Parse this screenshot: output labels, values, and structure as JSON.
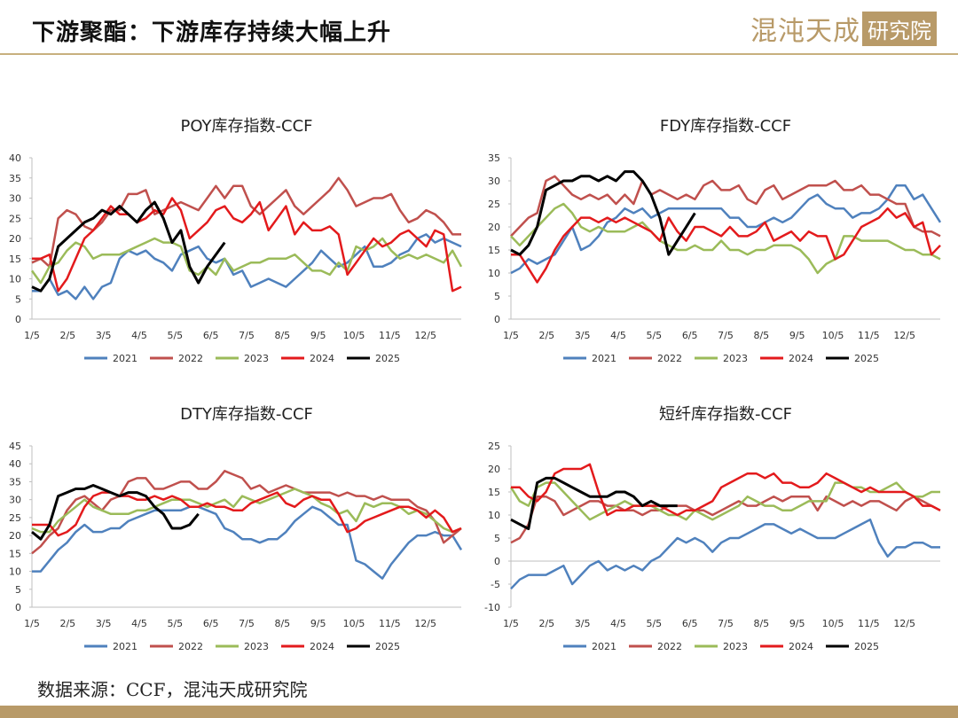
{
  "page": {
    "title": "下游聚酯：下游库存持续大幅上升",
    "logo_text": "混沌天成",
    "logo_box": "研究院",
    "source": "数据来源：CCF，混沌天成研究院"
  },
  "colors": {
    "2021": "#4f81bd",
    "2022": "#c0504d",
    "2023": "#9bbb59",
    "2024": "#e31a1c",
    "2025": "#000000",
    "accent": "#b89a68"
  },
  "chart_data": [
    {
      "type": "line",
      "title": "POY库存指数-CCF",
      "x_ticks": [
        "1/5",
        "2/5",
        "3/5",
        "4/5",
        "5/5",
        "6/5",
        "7/5",
        "8/5",
        "9/5",
        "10/5",
        "11/5",
        "12/5"
      ],
      "ylim": [
        0,
        40
      ],
      "y_ticks": [
        0,
        5,
        10,
        15,
        20,
        25,
        30,
        35,
        40
      ],
      "series": [
        {
          "name": "2021",
          "values": [
            7,
            7,
            10,
            6,
            7,
            5,
            8,
            5,
            8,
            9,
            15,
            17,
            16,
            17,
            15,
            14,
            12,
            16,
            17,
            18,
            15,
            14,
            15,
            11,
            12,
            8,
            9,
            10,
            9,
            8,
            10,
            12,
            14,
            17,
            15,
            13,
            14,
            16,
            18,
            13,
            13,
            14,
            16,
            17,
            20,
            21,
            19,
            20,
            19,
            18
          ]
        },
        {
          "name": "2022",
          "values": [
            14,
            15,
            13,
            25,
            27,
            26,
            23,
            22,
            24,
            27,
            27,
            31,
            31,
            32,
            26,
            27,
            28,
            29,
            28,
            27,
            30,
            33,
            30,
            33,
            33,
            28,
            26,
            28,
            30,
            32,
            28,
            26,
            28,
            30,
            32,
            35,
            32,
            28,
            29,
            30,
            30,
            31,
            27,
            24,
            25,
            27,
            26,
            24,
            21,
            21
          ]
        },
        {
          "name": "2023",
          "values": [
            12,
            9,
            13,
            14,
            17,
            19,
            18,
            15,
            16,
            16,
            16,
            17,
            18,
            19,
            20,
            19,
            19,
            18,
            12,
            11,
            13,
            11,
            15,
            12,
            13,
            14,
            14,
            15,
            15,
            15,
            16,
            14,
            12,
            12,
            11,
            14,
            12,
            18,
            17,
            18,
            20,
            17,
            15,
            16,
            15,
            16,
            15,
            14,
            17,
            13
          ]
        },
        {
          "name": "2024",
          "values": [
            15,
            15,
            16,
            7,
            10,
            15,
            20,
            22,
            25,
            28,
            26,
            26,
            24,
            25,
            27,
            26,
            30,
            27,
            20,
            22,
            24,
            27,
            28,
            25,
            24,
            26,
            29,
            22,
            25,
            28,
            21,
            24,
            22,
            22,
            23,
            21,
            11,
            14,
            17,
            20,
            18,
            19,
            21,
            22,
            20,
            18,
            22,
            21,
            7,
            8
          ]
        },
        {
          "name": "2025",
          "values": [
            8,
            7,
            10,
            18,
            20,
            22,
            24,
            25,
            27,
            26,
            28,
            26,
            24,
            27,
            29,
            25,
            19,
            22,
            13,
            9,
            13,
            16,
            19
          ]
        }
      ],
      "legend": "bottom"
    },
    {
      "type": "line",
      "title": "FDY库存指数-CCF",
      "x_ticks": [
        "1/5",
        "2/5",
        "3/5",
        "4/5",
        "5/5",
        "6/5",
        "7/5",
        "8/5",
        "9/5",
        "10/5",
        "11/5",
        "12/5"
      ],
      "ylim": [
        0,
        35
      ],
      "y_ticks": [
        0,
        5,
        10,
        15,
        20,
        25,
        30,
        35
      ],
      "series": [
        {
          "name": "2021",
          "values": [
            10,
            11,
            13,
            12,
            13,
            14,
            17,
            20,
            15,
            16,
            18,
            21,
            22,
            24,
            23,
            24,
            22,
            23,
            24,
            24,
            24,
            24,
            24,
            24,
            24,
            22,
            22,
            20,
            20,
            21,
            22,
            21,
            22,
            24,
            26,
            27,
            25,
            24,
            24,
            22,
            23,
            23,
            24,
            26,
            29,
            29,
            26,
            27,
            24,
            21
          ]
        },
        {
          "name": "2022",
          "values": [
            18,
            20,
            22,
            23,
            30,
            31,
            29,
            27,
            26,
            27,
            26,
            27,
            25,
            27,
            25,
            30,
            27,
            28,
            27,
            26,
            27,
            26,
            29,
            30,
            28,
            28,
            29,
            26,
            25,
            28,
            29,
            26,
            27,
            28,
            29,
            29,
            29,
            30,
            28,
            28,
            29,
            27,
            27,
            26,
            25,
            25,
            20,
            19,
            19,
            18
          ]
        },
        {
          "name": "2023",
          "values": [
            18,
            16,
            18,
            20,
            22,
            24,
            25,
            23,
            20,
            19,
            20,
            19,
            19,
            19,
            20,
            21,
            19,
            17,
            16,
            15,
            15,
            16,
            15,
            15,
            17,
            15,
            15,
            14,
            15,
            15,
            16,
            16,
            16,
            15,
            13,
            10,
            12,
            13,
            18,
            18,
            17,
            17,
            17,
            17,
            16,
            15,
            15,
            14,
            14,
            13
          ]
        },
        {
          "name": "2024",
          "values": [
            14,
            14,
            11,
            8,
            11,
            15,
            18,
            20,
            22,
            22,
            21,
            22,
            21,
            22,
            21,
            20,
            19,
            17,
            22,
            19,
            17,
            20,
            20,
            19,
            18,
            20,
            18,
            18,
            19,
            21,
            17,
            18,
            19,
            17,
            19,
            18,
            18,
            13,
            14,
            17,
            20,
            21,
            22,
            24,
            22,
            23,
            20,
            21,
            14,
            16
          ]
        },
        {
          "name": "2025",
          "values": [
            15,
            14,
            16,
            20,
            28,
            29,
            30,
            30,
            31,
            31,
            30,
            31,
            30,
            32,
            32,
            30,
            27,
            22,
            14,
            17,
            20,
            23
          ]
        }
      ],
      "legend": "bottom"
    },
    {
      "type": "line",
      "title": "DTY库存指数-CCF",
      "x_ticks": [
        "1/5",
        "2/5",
        "3/5",
        "4/5",
        "5/5",
        "6/5",
        "7/5",
        "8/5",
        "9/5",
        "10/5",
        "11/5",
        "12/5"
      ],
      "ylim": [
        0,
        45
      ],
      "y_ticks": [
        0,
        5,
        10,
        15,
        20,
        25,
        30,
        35,
        40,
        45
      ],
      "series": [
        {
          "name": "2021",
          "values": [
            10,
            10,
            13,
            16,
            18,
            21,
            23,
            21,
            21,
            22,
            22,
            24,
            25,
            26,
            27,
            27,
            27,
            27,
            28,
            28,
            27,
            26,
            22,
            21,
            19,
            19,
            18,
            19,
            19,
            21,
            24,
            26,
            28,
            27,
            25,
            23,
            23,
            13,
            12,
            10,
            8,
            12,
            15,
            18,
            20,
            20,
            21,
            20,
            20,
            16
          ]
        },
        {
          "name": "2022",
          "values": [
            15,
            17,
            20,
            22,
            27,
            30,
            31,
            29,
            27,
            30,
            31,
            35,
            36,
            36,
            33,
            33,
            34,
            35,
            35,
            33,
            33,
            35,
            38,
            37,
            36,
            33,
            34,
            32,
            33,
            34,
            33,
            32,
            32,
            32,
            32,
            31,
            32,
            31,
            31,
            30,
            31,
            30,
            30,
            30,
            28,
            27,
            24,
            18,
            20,
            22
          ]
        },
        {
          "name": "2023",
          "values": [
            22,
            21,
            21,
            24,
            26,
            28,
            30,
            28,
            27,
            26,
            26,
            26,
            27,
            27,
            28,
            29,
            30,
            30,
            30,
            29,
            28,
            29,
            30,
            28,
            31,
            30,
            29,
            30,
            31,
            32,
            33,
            32,
            31,
            29,
            28,
            26,
            27,
            24,
            29,
            28,
            29,
            29,
            28,
            26,
            27,
            26,
            24,
            22,
            21,
            22
          ]
        },
        {
          "name": "2024",
          "values": [
            23,
            23,
            23,
            20,
            21,
            23,
            28,
            31,
            32,
            32,
            31,
            31,
            30,
            30,
            31,
            30,
            31,
            30,
            28,
            28,
            29,
            28,
            28,
            27,
            27,
            29,
            30,
            31,
            32,
            29,
            28,
            30,
            31,
            30,
            30,
            26,
            21,
            22,
            24,
            25,
            26,
            27,
            28,
            28,
            27,
            25,
            27,
            25,
            21,
            22
          ]
        },
        {
          "name": "2025",
          "values": [
            21,
            19,
            23,
            31,
            32,
            33,
            33,
            34,
            33,
            32,
            31,
            32,
            32,
            31,
            28,
            26,
            22,
            22,
            23,
            26
          ]
        }
      ],
      "legend": "bottom"
    },
    {
      "type": "line",
      "title": "短纤库存指数-CCF",
      "x_ticks": [
        "1/5",
        "2/5",
        "3/5",
        "4/5",
        "5/5",
        "6/5",
        "7/5",
        "8/5",
        "9/5",
        "10/5",
        "11/5",
        "12/5"
      ],
      "ylim": [
        -10,
        25
      ],
      "y_ticks": [
        -10,
        -5,
        0,
        5,
        10,
        15,
        20,
        25
      ],
      "series": [
        {
          "name": "2021",
          "values": [
            -6,
            -4,
            -3,
            -3,
            -3,
            -2,
            -1,
            -5,
            -3,
            -1,
            0,
            -2,
            -1,
            -2,
            -1,
            -2,
            0,
            1,
            3,
            5,
            4,
            5,
            4,
            2,
            4,
            5,
            5,
            6,
            7,
            8,
            8,
            7,
            6,
            7,
            6,
            5,
            5,
            5,
            6,
            7,
            8,
            9,
            4,
            1,
            3,
            3,
            4,
            4,
            3,
            3
          ]
        },
        {
          "name": "2022",
          "values": [
            4,
            5,
            8,
            14,
            14,
            13,
            10,
            11,
            12,
            13,
            13,
            12,
            12,
            11,
            11,
            10,
            11,
            11,
            12,
            12,
            12,
            11,
            11,
            10,
            11,
            12,
            13,
            12,
            12,
            13,
            14,
            13,
            14,
            14,
            14,
            11,
            14,
            13,
            12,
            13,
            12,
            13,
            13,
            12,
            11,
            13,
            14,
            13,
            12,
            11
          ]
        },
        {
          "name": "2023",
          "values": [
            16,
            13,
            12,
            16,
            17,
            17,
            15,
            13,
            11,
            9,
            10,
            11,
            12,
            13,
            12,
            12,
            12,
            11,
            10,
            10,
            9,
            11,
            10,
            9,
            10,
            11,
            12,
            14,
            13,
            12,
            12,
            11,
            11,
            12,
            13,
            13,
            13,
            17,
            17,
            16,
            16,
            15,
            15,
            16,
            17,
            15,
            14,
            14,
            15,
            15
          ]
        },
        {
          "name": "2024",
          "values": [
            16,
            16,
            14,
            13,
            15,
            19,
            20,
            20,
            20,
            21,
            15,
            10,
            11,
            11,
            12,
            12,
            12,
            12,
            11,
            10,
            11,
            11,
            12,
            13,
            16,
            17,
            18,
            19,
            19,
            18,
            19,
            17,
            17,
            16,
            16,
            17,
            19,
            18,
            17,
            16,
            15,
            16,
            15,
            15,
            15,
            15,
            14,
            12,
            12,
            11
          ]
        },
        {
          "name": "2025",
          "values": [
            9,
            8,
            7,
            17,
            18,
            18,
            17,
            16,
            15,
            14,
            14,
            14,
            15,
            15,
            14,
            12,
            13,
            12,
            12,
            12
          ]
        }
      ],
      "legend": "bottom"
    }
  ]
}
